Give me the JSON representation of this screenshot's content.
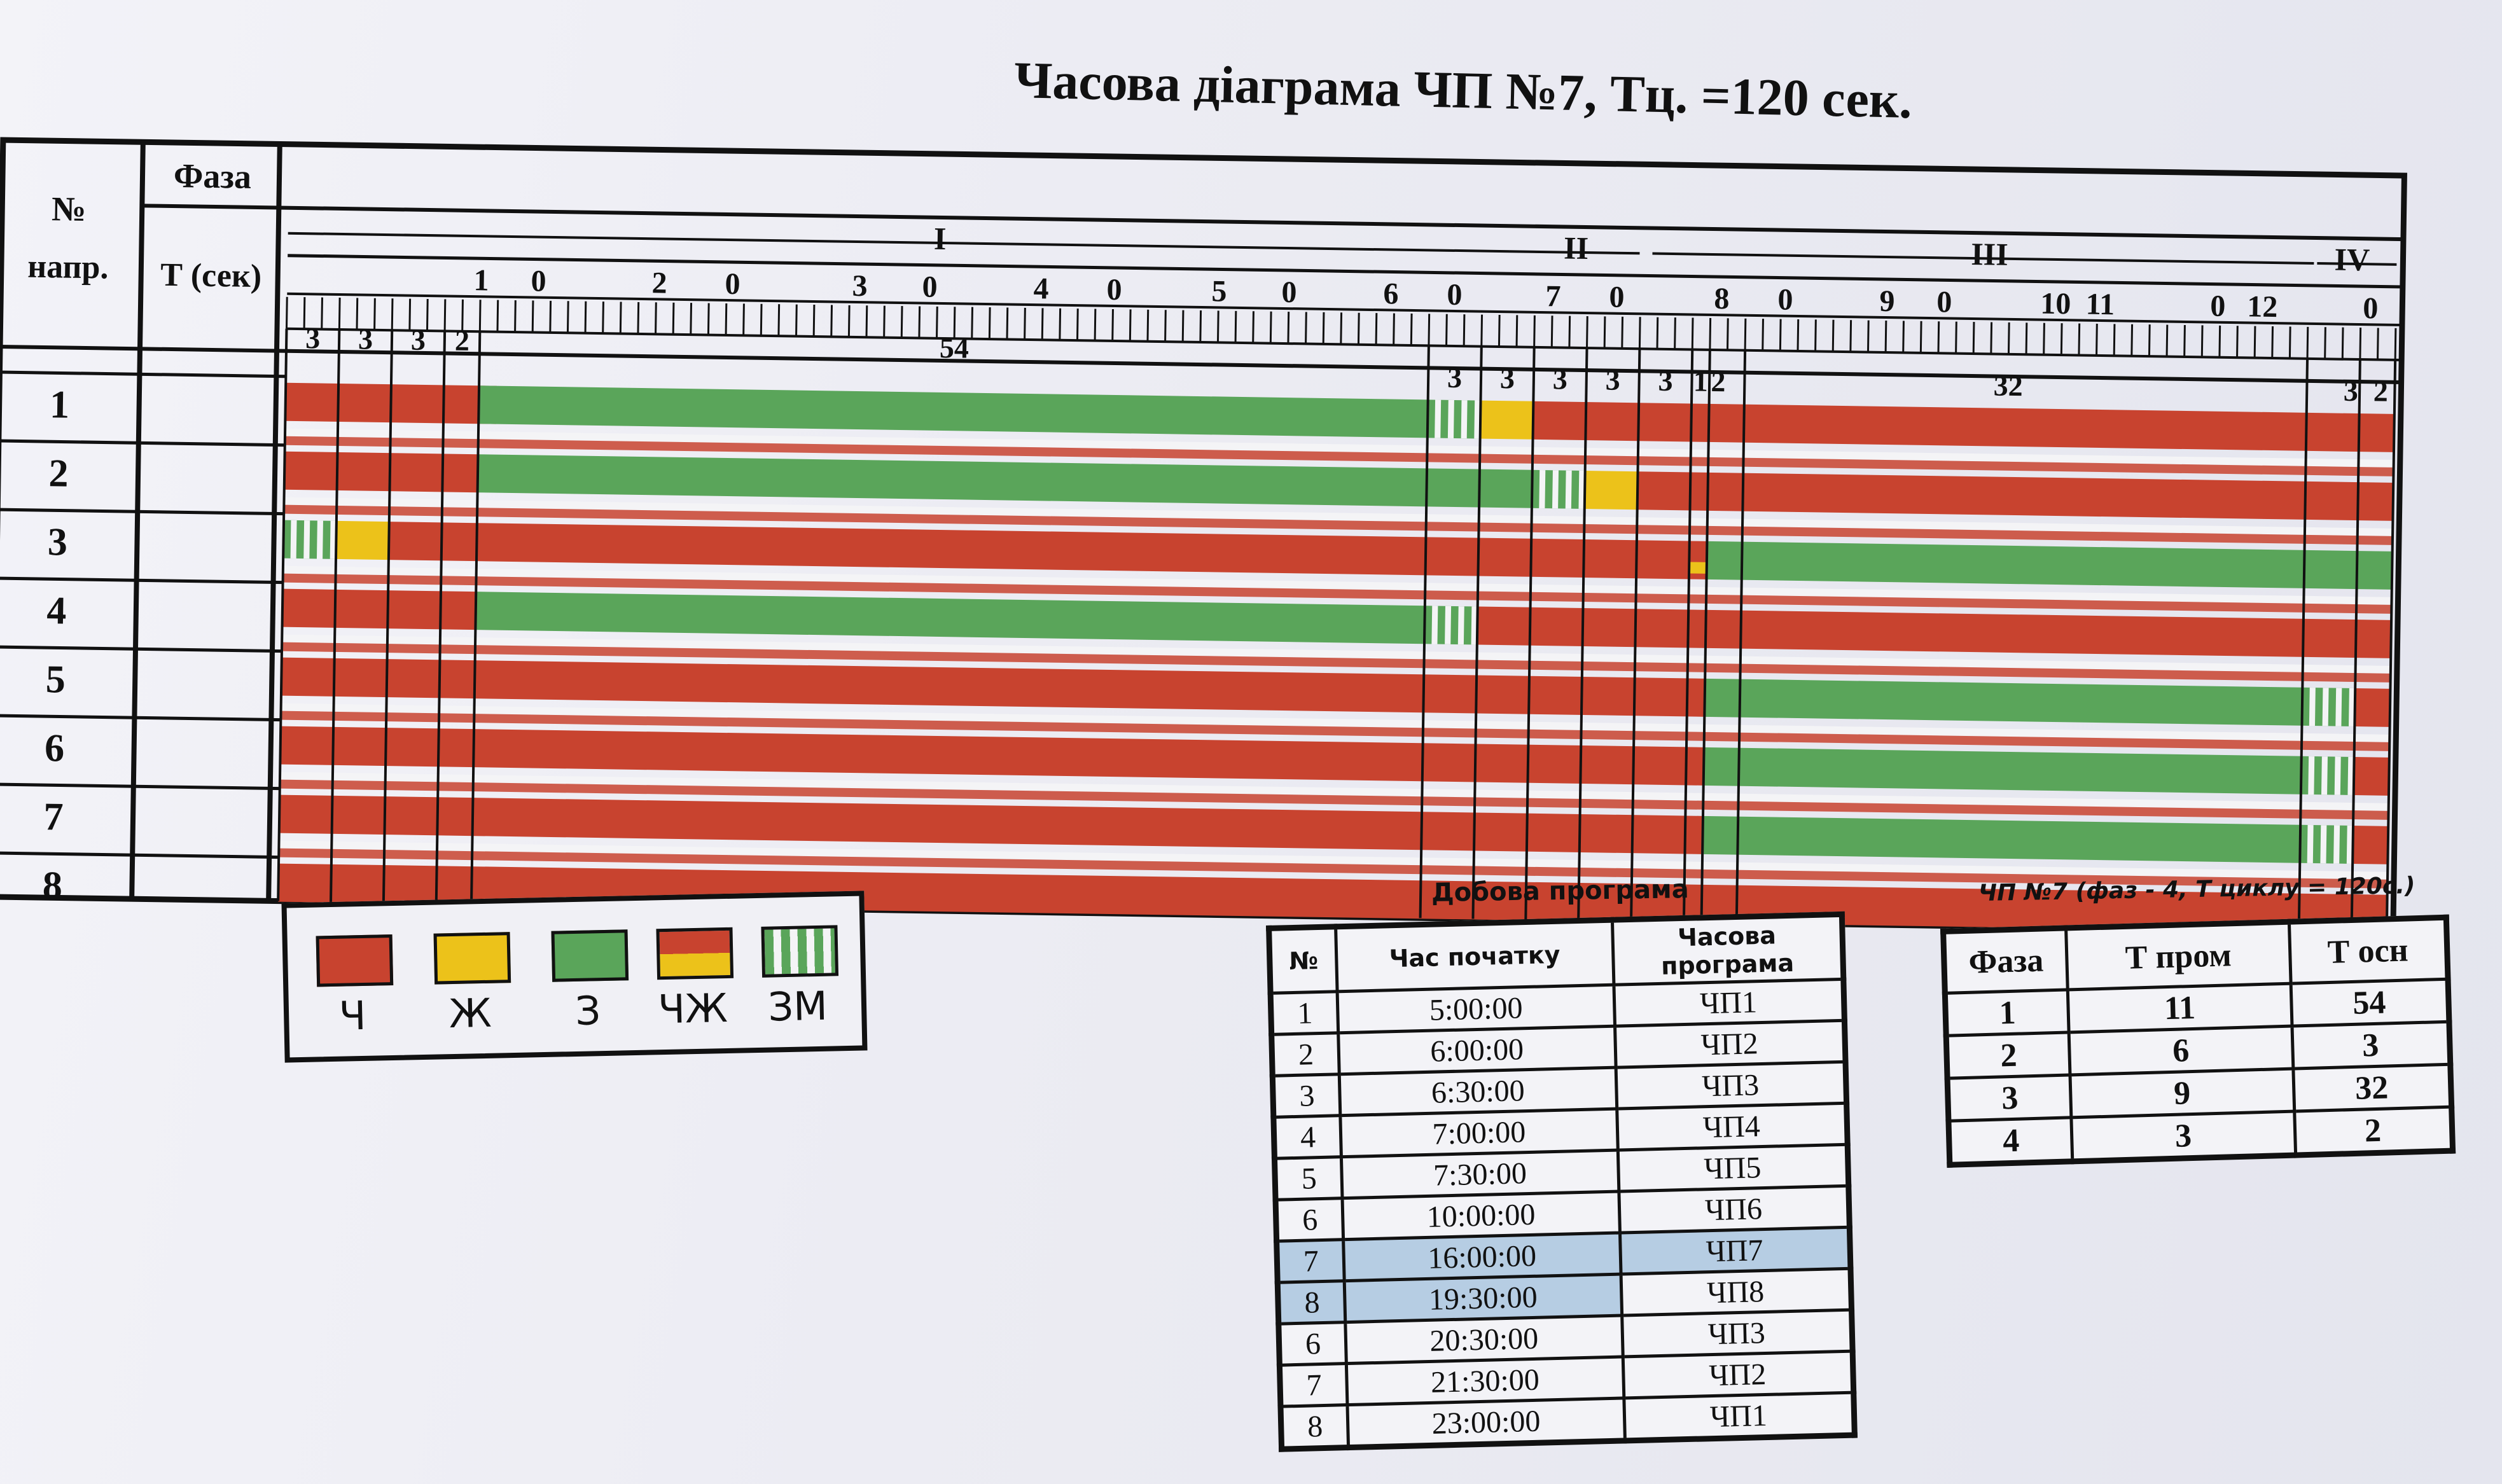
{
  "title": "Часова діаграма ЧП №7, Тц. =120 сек.",
  "colors": {
    "red": "#c8432f",
    "yellow": "#ecc21a",
    "green": "#5aa55a",
    "white_stripe": "#f4f4f6",
    "highlight": "#b6cde3"
  },
  "diagram": {
    "header_no": "№",
    "header_napr": "напр.",
    "header_phase": "Фаза",
    "header_t": "Т (сек)",
    "phase_roman": [
      "I",
      "II",
      "III",
      "IV"
    ],
    "time_scale_labels": [
      "1",
      "0",
      "2",
      "0",
      "3",
      "0",
      "4",
      "0",
      "5",
      "0",
      "6",
      "0",
      "7",
      "0",
      "8",
      "0",
      "9",
      "0",
      "10",
      "11",
      "0",
      "12",
      "0"
    ],
    "durations_top": [
      "3",
      "3",
      "3",
      "2",
      "54"
    ],
    "durations_bottom": [
      "3",
      "3",
      "3",
      "3",
      "3",
      "1",
      "2",
      "32",
      "3",
      "2"
    ],
    "direction_numbers": [
      "1",
      "2",
      "3",
      "4",
      "5",
      "6",
      "7",
      "8"
    ],
    "rows": [
      {
        "dir": "1",
        "segments": [
          {
            "c": "red",
            "d": 11
          },
          {
            "c": "redyellow",
            "d": 0
          },
          {
            "c": "green",
            "d": 54
          },
          {
            "c": "greenflash",
            "d": 3
          },
          {
            "c": "yellow",
            "d": 3
          },
          {
            "c": "red",
            "d": 49
          }
        ]
      },
      {
        "dir": "2",
        "segments": [
          {
            "c": "red",
            "d": 11
          },
          {
            "c": "green",
            "d": 54
          },
          {
            "c": "green",
            "d": 6
          },
          {
            "c": "greenflash",
            "d": 3
          },
          {
            "c": "yellow",
            "d": 3
          },
          {
            "c": "red",
            "d": 43
          }
        ]
      },
      {
        "dir": "3",
        "segments": [
          {
            "c": "greenflash",
            "d": 3
          },
          {
            "c": "yellow",
            "d": 3
          },
          {
            "c": "red",
            "d": 5
          },
          {
            "c": "red",
            "d": 54
          },
          {
            "c": "red",
            "d": 15
          },
          {
            "c": "redyellow",
            "d": 1
          },
          {
            "c": "green",
            "d": 39
          }
        ]
      },
      {
        "dir": "4",
        "segments": [
          {
            "c": "red",
            "d": 11
          },
          {
            "c": "green",
            "d": 54
          },
          {
            "c": "greenflash",
            "d": 3
          },
          {
            "c": "red",
            "d": 52
          }
        ]
      },
      {
        "dir": "5",
        "segments": [
          {
            "c": "red",
            "d": 81
          },
          {
            "c": "green",
            "d": 34
          },
          {
            "c": "greenflash",
            "d": 3
          },
          {
            "c": "red",
            "d": 2
          }
        ]
      },
      {
        "dir": "6",
        "segments": [
          {
            "c": "red",
            "d": 81
          },
          {
            "c": "green",
            "d": 34
          },
          {
            "c": "greenflash",
            "d": 3
          },
          {
            "c": "red",
            "d": 2
          }
        ]
      },
      {
        "dir": "7",
        "segments": [
          {
            "c": "red",
            "d": 81
          },
          {
            "c": "green",
            "d": 34
          },
          {
            "c": "greenflash",
            "d": 3
          },
          {
            "c": "red",
            "d": 2
          }
        ]
      },
      {
        "dir": "8",
        "segments": [
          {
            "c": "red",
            "d": 120
          }
        ]
      }
    ]
  },
  "legend": [
    {
      "icon": "red-swatch",
      "label": "Ч"
    },
    {
      "icon": "yellow-swatch",
      "label": "Ж"
    },
    {
      "icon": "green-swatch",
      "label": "З"
    },
    {
      "icon": "red-yellow-swatch",
      "label": "ЧЖ"
    },
    {
      "icon": "green-flash-swatch",
      "label": "ЗМ"
    }
  ],
  "daily_program": {
    "title": "Добова програма",
    "headers": [
      "№",
      "Час початку",
      "Часова програма"
    ],
    "rows": [
      [
        "1",
        "5:00:00",
        "ЧП1"
      ],
      [
        "2",
        "6:00:00",
        "ЧП2"
      ],
      [
        "3",
        "6:30:00",
        "ЧП3"
      ],
      [
        "4",
        "7:00:00",
        "ЧП4"
      ],
      [
        "5",
        "7:30:00",
        "ЧП5"
      ],
      [
        "6",
        "10:00:00",
        "ЧП6"
      ],
      [
        "7",
        "16:00:00",
        "ЧП7"
      ],
      [
        "8",
        "19:30:00",
        "ЧП8"
      ],
      [
        "6",
        "20:30:00",
        "ЧП3"
      ],
      [
        "7",
        "21:30:00",
        "ЧП2"
      ],
      [
        "8",
        "23:00:00",
        "ЧП1"
      ]
    ],
    "highlighted_rows": [
      6,
      7
    ]
  },
  "phase_table": {
    "title": "ЧП №7 (фаз - 4, Т циклу = 120с.)",
    "headers": [
      "Фаза",
      "Т пром",
      "Т осн"
    ],
    "rows": [
      [
        "1",
        "11",
        "54"
      ],
      [
        "2",
        "6",
        "3"
      ],
      [
        "3",
        "9",
        "32"
      ],
      [
        "4",
        "3",
        "2"
      ]
    ]
  }
}
